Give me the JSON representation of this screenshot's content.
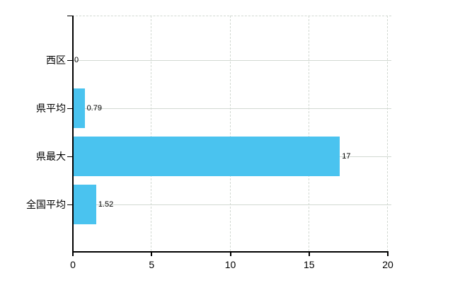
{
  "chart_data": {
    "type": "bar",
    "orientation": "horizontal",
    "title": "",
    "categories": [
      "西区",
      "県平均",
      "県最大",
      "全国平均"
    ],
    "values": [
      0,
      0.79,
      17,
      1.52
    ],
    "value_labels": [
      "0",
      "0.79",
      "17",
      "1.52"
    ],
    "x_tick_labels": [
      "0",
      "5",
      "10",
      "15",
      "20"
    ],
    "x_tick_values": [
      0,
      5,
      10,
      15,
      20
    ],
    "xlim": [
      0,
      20
    ],
    "grid": true,
    "legend_position": "none",
    "colors": {
      "bar": "#4ac3ef",
      "grid": "#d2d9d2",
      "axis": "#000000",
      "text": "#000000",
      "background": "#ffffff"
    }
  }
}
